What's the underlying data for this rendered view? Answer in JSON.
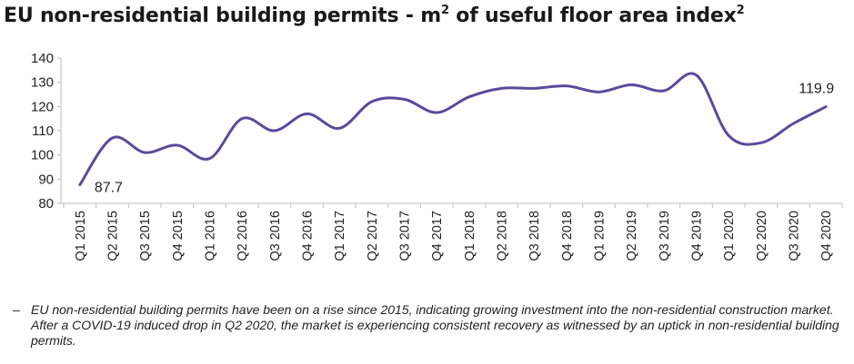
{
  "title": {
    "text_main": "EU non-residential building permits - m",
    "sup_a": "2",
    "text_mid": " of useful floor area index",
    "sup_b": "2"
  },
  "chart_data": {
    "type": "line",
    "categories": [
      "Q1 2015",
      "Q2 2015",
      "Q3 2015",
      "Q4 2015",
      "Q1 2016",
      "Q2 2016",
      "Q3 2016",
      "Q4 2016",
      "Q1 2017",
      "Q2 2017",
      "Q3 2017",
      "Q4 2017",
      "Q1 2018",
      "Q2 2018",
      "Q3 2018",
      "Q4 2018",
      "Q1 2019",
      "Q2 2019",
      "Q3 2019",
      "Q4 2019",
      "Q1 2020",
      "Q2 2020",
      "Q3 2020",
      "Q4 2020"
    ],
    "series": [
      {
        "values": [
          87.7,
          107,
          101,
          104,
          98.5,
          115,
          110,
          117,
          111,
          122,
          123,
          117.5,
          124,
          127.5,
          127.5,
          128.5,
          126,
          129,
          126.5,
          133,
          108,
          105,
          113,
          119.9
        ]
      }
    ],
    "ylim": [
      80,
      140
    ],
    "yticks": [
      80,
      90,
      100,
      110,
      120,
      130,
      140
    ],
    "data_labels": [
      {
        "index": 0,
        "text": "87.7"
      },
      {
        "index": 23,
        "text": "119.9"
      }
    ],
    "line_color": "#5b4a9b",
    "grid": false
  },
  "note": {
    "dash": "–",
    "text": "EU non-residential building permits have been on a rise since 2015, indicating growing investment into the non-residential construction market. After a COVID-19 induced drop in Q2 2020, the market is experiencing consistent recovery as witnessed by an uptick in non-residential building permits."
  }
}
